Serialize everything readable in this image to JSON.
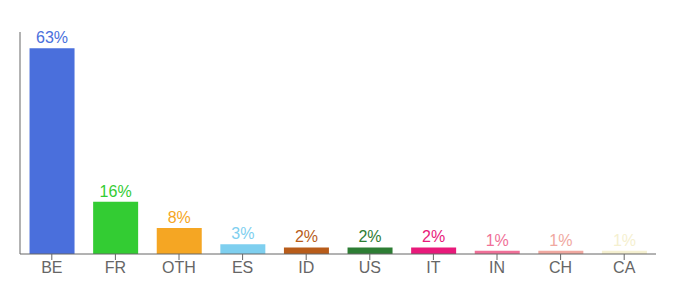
{
  "chart_data": {
    "type": "bar",
    "categories": [
      "BE",
      "FR",
      "OTH",
      "ES",
      "ID",
      "US",
      "IT",
      "IN",
      "CH",
      "CA"
    ],
    "values": [
      63,
      16,
      8,
      3,
      2,
      2,
      2,
      1,
      1,
      1
    ],
    "value_labels": [
      "63%",
      "16%",
      "8%",
      "3%",
      "2%",
      "2%",
      "2%",
      "1%",
      "1%",
      "1%"
    ],
    "colors": [
      "#4a6fdc",
      "#33cc33",
      "#f5a623",
      "#7ecfef",
      "#b85c1a",
      "#2d7d34",
      "#e8197a",
      "#f07098",
      "#f0a8a0",
      "#f5f0d0"
    ],
    "ylim": [
      0,
      68
    ],
    "data_labels": true,
    "tick_labels": "x",
    "grid": false
  }
}
